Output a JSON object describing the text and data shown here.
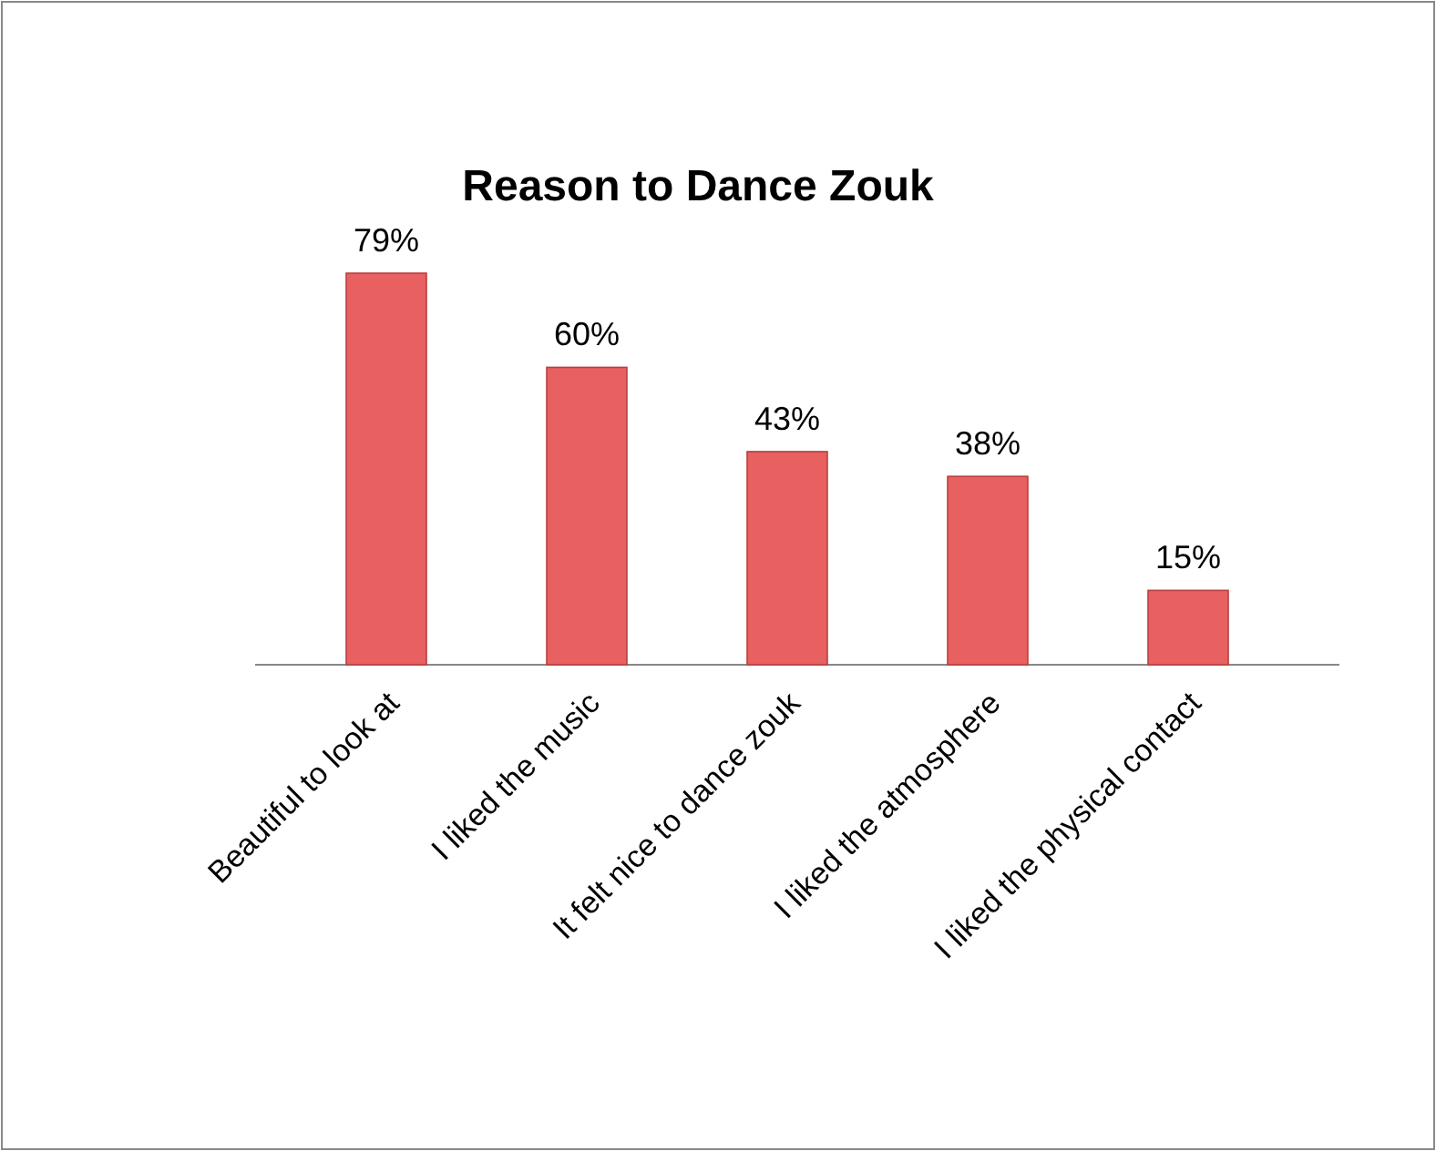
{
  "chart_data": {
    "type": "bar",
    "title": "Reason to Dance Zouk",
    "categories": [
      "Beautiful to look at",
      "I liked the music",
      "It felt nice to dance zouk",
      "I liked the atmosphere",
      "I liked the physical contact"
    ],
    "values": [
      79,
      60,
      43,
      38,
      15
    ],
    "color": "#e8605f",
    "value_labels": [
      "79%",
      "60%",
      "43%",
      "38%",
      "15%"
    ]
  }
}
